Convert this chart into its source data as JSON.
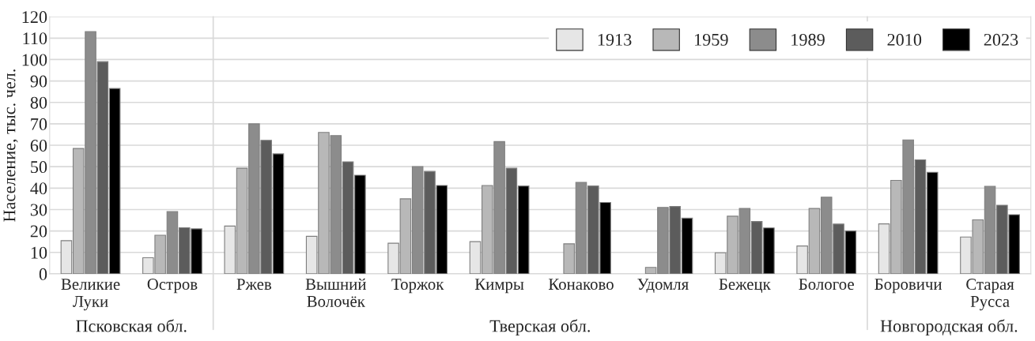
{
  "chart_data": {
    "type": "bar",
    "ylabel": "Население, тыс. чел.",
    "categories": [
      "Великие\nЛуки",
      "Остров",
      "Ржев",
      "Вышний\nВолочёк",
      "Торжок",
      "Кимры",
      "Конаково",
      "Удомля",
      "Бежецк",
      "Бологое",
      "Боровичи",
      "Старая\nРусса"
    ],
    "series": [
      {
        "name": "1913",
        "color": "#e6e6e6",
        "values": [
          15.5,
          7.5,
          22.3,
          17.5,
          14.3,
          15,
          null,
          null,
          9.8,
          13,
          23.3,
          17.2
        ]
      },
      {
        "name": "1959",
        "color": "#b8b8b8",
        "values": [
          58.5,
          18,
          49.3,
          66,
          35,
          41.2,
          14,
          3,
          26.9,
          30.5,
          43.6,
          25.2
        ]
      },
      {
        "name": "1989",
        "color": "#8c8c8c",
        "values": [
          113,
          29,
          70,
          64.5,
          50,
          61.7,
          42.7,
          31,
          30.5,
          35.8,
          62.5,
          40.8
        ]
      },
      {
        "name": "2010",
        "color": "#5c5c5c",
        "values": [
          99,
          21.5,
          62.3,
          52.3,
          47.8,
          49.3,
          41,
          31.4,
          24.4,
          23.2,
          53.2,
          32
        ]
      },
      {
        "name": "2023",
        "color": "#000000",
        "values": [
          86.5,
          21,
          56,
          46,
          41.2,
          41,
          33.3,
          26,
          21.4,
          20,
          47.4,
          27.6
        ]
      }
    ],
    "ylim": [
      0,
      120
    ],
    "yticks": [
      0,
      10,
      20,
      30,
      40,
      50,
      60,
      70,
      80,
      90,
      100,
      110,
      120
    ],
    "grid": "y",
    "legend": "top right",
    "annotations": [
      "Псковская обл.",
      "Тверская обл.",
      "Новгородская обл."
    ]
  }
}
